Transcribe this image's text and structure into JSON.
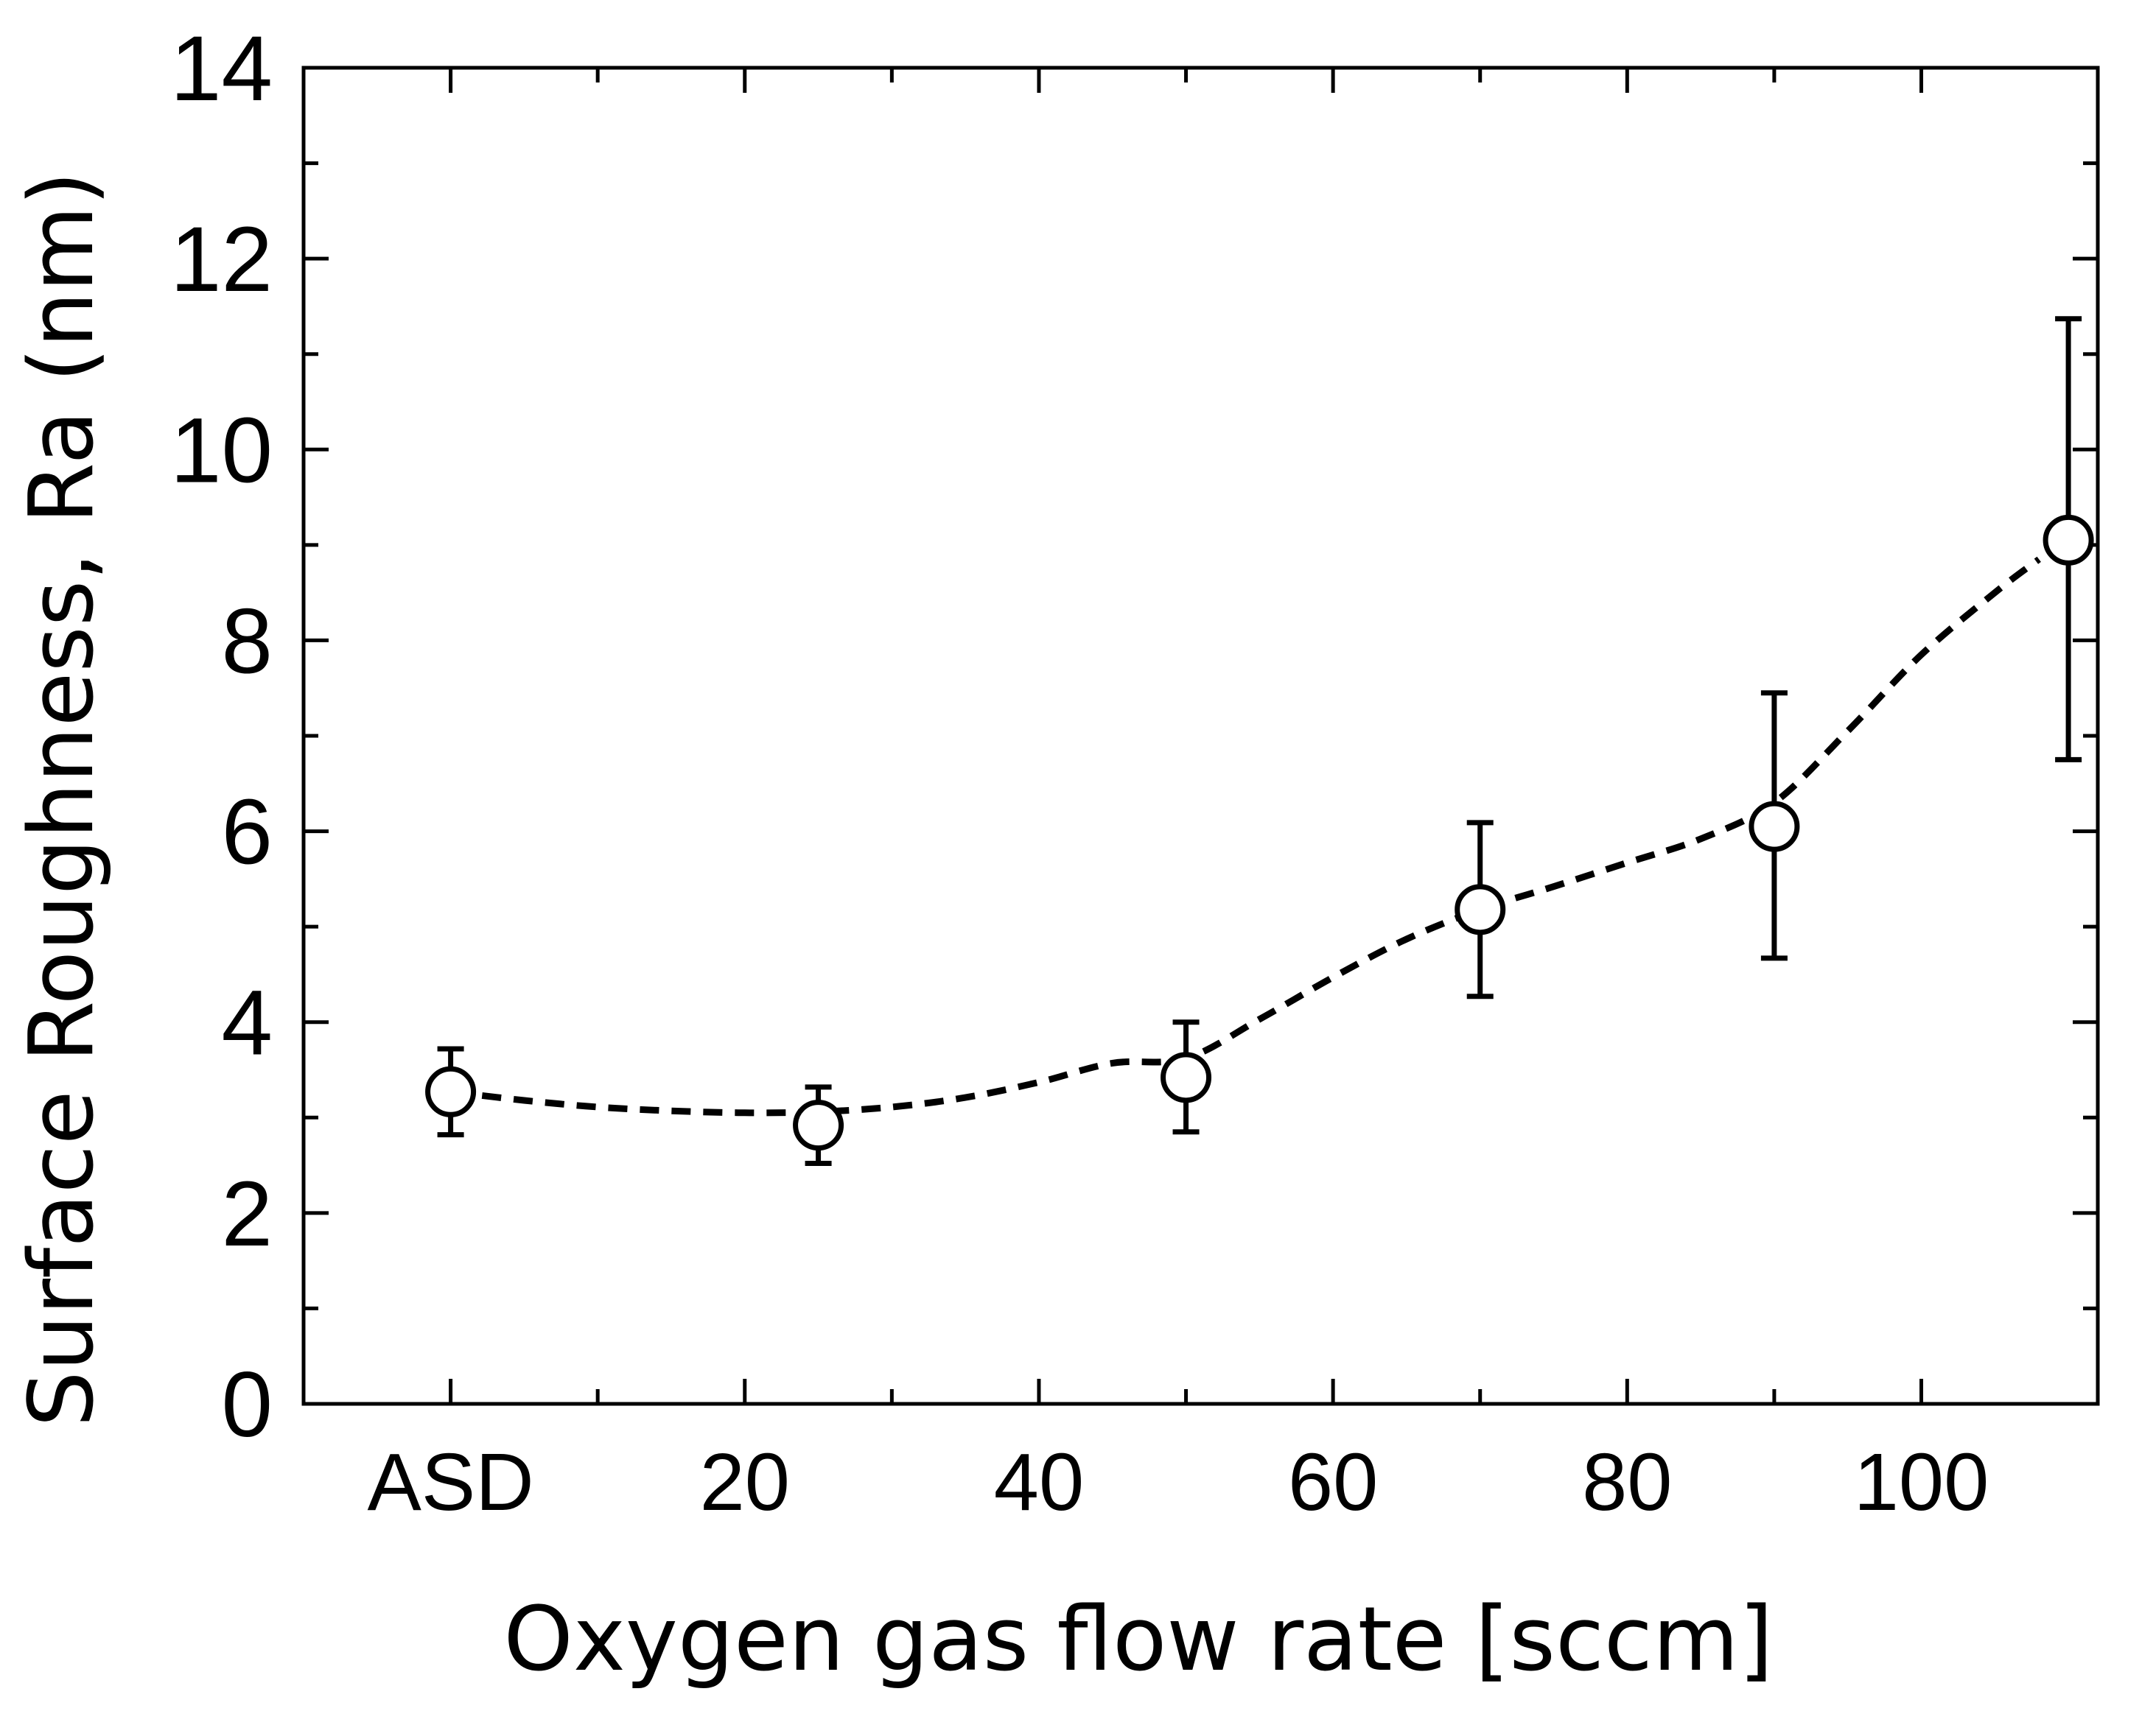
{
  "chart_data": {
    "type": "scatter",
    "title": "",
    "xlabel": "Oxygen gas flow rate [sccm]",
    "ylabel": "Surface Roughness,  Ra (nm)",
    "xlim": [
      -10,
      112
    ],
    "ylim": [
      0,
      14
    ],
    "grid": false,
    "x_tick_values": [
      0,
      20,
      40,
      60,
      80,
      100
    ],
    "x_tick_labels": [
      "ASD",
      "20",
      "40",
      "60",
      "80",
      "100"
    ],
    "x_minor_ticks": [
      10,
      30,
      50,
      70,
      90
    ],
    "y_tick_values": [
      0,
      2,
      4,
      6,
      8,
      10,
      12,
      14
    ],
    "y_tick_labels": [
      "0",
      "2",
      "4",
      "6",
      "8",
      "10",
      "12",
      "14"
    ],
    "y_minor_ticks": [
      1,
      3,
      5,
      7,
      9,
      11,
      13
    ],
    "series": [
      {
        "name": "Ra",
        "marker": "open-circle",
        "points": [
          {
            "x": 0,
            "y": 3.27,
            "err_low": 2.82,
            "err_high": 3.72
          },
          {
            "x": 25,
            "y": 2.92,
            "err_low": 2.52,
            "err_high": 3.32
          },
          {
            "x": 50,
            "y": 3.42,
            "err_low": 2.85,
            "err_high": 4.0
          },
          {
            "x": 70,
            "y": 5.18,
            "err_low": 4.27,
            "err_high": 6.09
          },
          {
            "x": 90,
            "y": 6.05,
            "err_low": 4.67,
            "err_high": 7.45
          },
          {
            "x": 110,
            "y": 9.05,
            "err_low": 6.75,
            "err_high": 11.37
          }
        ]
      }
    ],
    "fit_curve": {
      "style": "dashed",
      "points": [
        [
          0,
          3.27
        ],
        [
          5,
          3.18
        ],
        [
          10,
          3.11
        ],
        [
          15,
          3.07
        ],
        [
          20,
          3.05
        ],
        [
          25,
          3.06
        ],
        [
          30,
          3.11
        ],
        [
          35,
          3.21
        ],
        [
          40,
          3.37
        ],
        [
          45,
          3.57
        ],
        [
          50,
          3.62
        ],
        [
          55,
          4.03
        ],
        [
          60,
          4.47
        ],
        [
          65,
          4.87
        ],
        [
          70,
          5.18
        ],
        [
          75,
          5.42
        ],
        [
          80,
          5.67
        ],
        [
          85,
          5.92
        ],
        [
          90,
          6.3
        ],
        [
          95,
          7.05
        ],
        [
          100,
          7.85
        ],
        [
          105,
          8.5
        ],
        [
          108,
          8.85
        ]
      ]
    },
    "colors": {
      "line": "#000000",
      "marker_fill": "#ffffff",
      "background": "#ffffff"
    }
  }
}
